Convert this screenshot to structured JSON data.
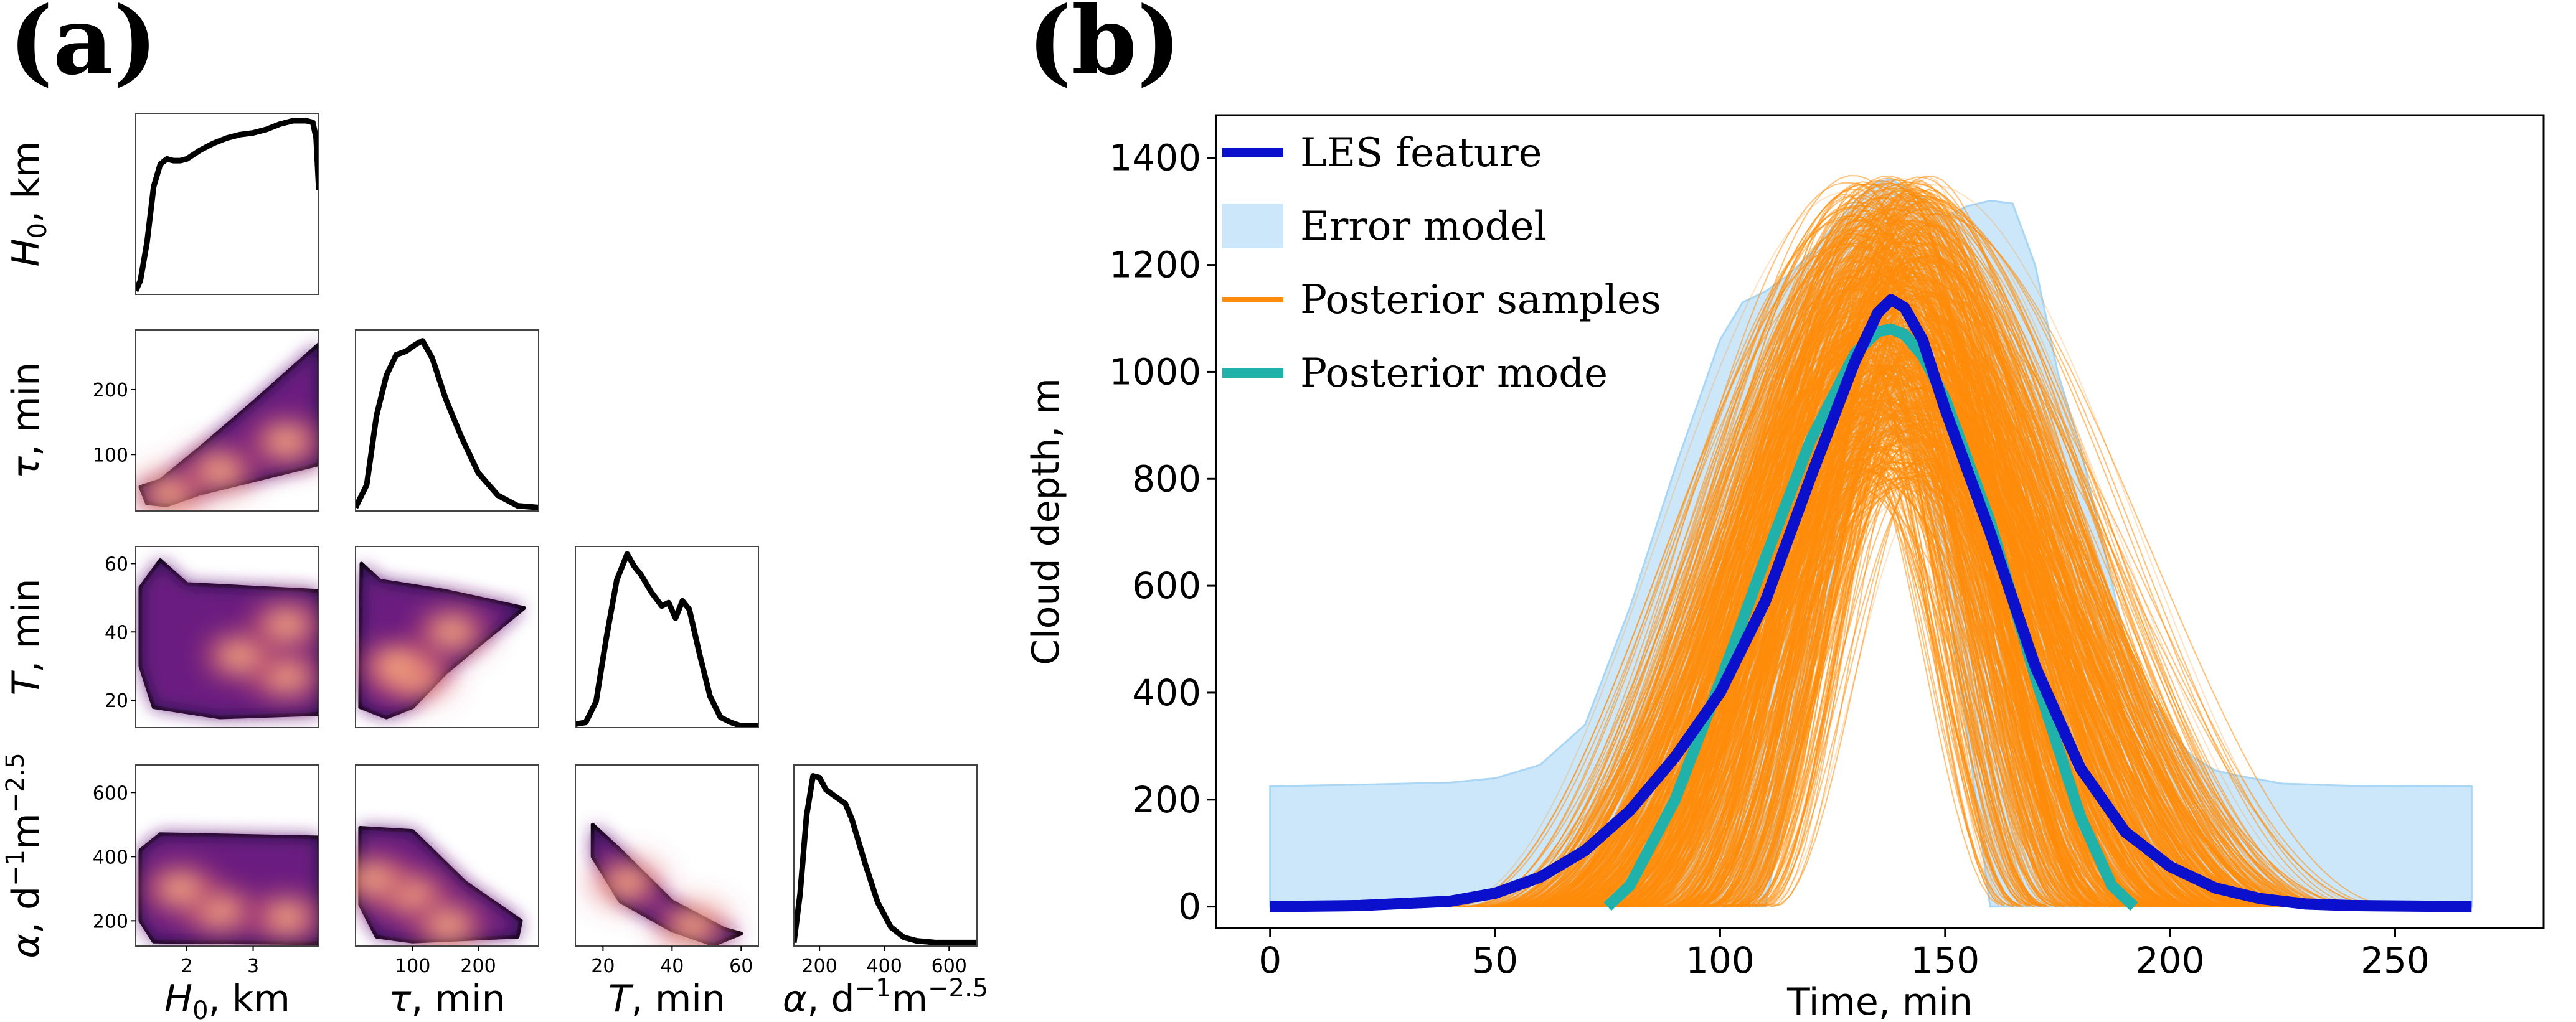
{
  "panel_labels": {
    "a": "(a)",
    "b": "(b)"
  },
  "chart_data": [
    {
      "type": "corner",
      "panel": "(a)",
      "colormap": "magma",
      "parameters": [
        {
          "label_html": "H0, km",
          "sym": "H",
          "sub": "0",
          "unit": ", km",
          "range": [
            1.23,
            3.99
          ],
          "ticks": [
            2,
            3
          ]
        },
        {
          "label_html": "τ, min",
          "sym": "τ",
          "unit": ", min",
          "range": [
            13,
            292
          ],
          "ticks": [
            100,
            200
          ]
        },
        {
          "label_html": "T, min",
          "sym": "T",
          "unit": ", min",
          "range": [
            12,
            65
          ],
          "ticks": [
            20,
            40,
            60
          ]
        },
        {
          "label_html": "α, d-1m-2.5",
          "sym": "α",
          "unit": ", d",
          "sup1": "−1",
          "unit2": "m",
          "sup2": "−2.5",
          "range": [
            121,
            686
          ],
          "ticks": [
            200,
            400,
            600
          ]
        }
      ],
      "marginals": [
        {
          "x": [
            1.23,
            1.3,
            1.4,
            1.5,
            1.6,
            1.7,
            1.8,
            1.9,
            2.0,
            2.2,
            2.4,
            2.6,
            2.8,
            3.0,
            3.2,
            3.4,
            3.6,
            3.8,
            3.9,
            3.95,
            3.99
          ],
          "density": [
            0.02,
            0.08,
            0.3,
            0.62,
            0.75,
            0.78,
            0.77,
            0.77,
            0.78,
            0.83,
            0.87,
            0.9,
            0.92,
            0.93,
            0.95,
            0.98,
            1.0,
            1.0,
            0.99,
            0.9,
            0.6
          ]
        },
        {
          "x": [
            13,
            30,
            45,
            60,
            75,
            90,
            105,
            115,
            130,
            150,
            175,
            200,
            230,
            260,
            292
          ],
          "density": [
            0.02,
            0.15,
            0.55,
            0.78,
            0.9,
            0.92,
            0.96,
            0.98,
            0.88,
            0.65,
            0.42,
            0.22,
            0.09,
            0.03,
            0.02
          ]
        },
        {
          "x": [
            12,
            15,
            18,
            21,
            24,
            27,
            29,
            31,
            34,
            37,
            39,
            41,
            43,
            45,
            48,
            51,
            54,
            57,
            60,
            65
          ],
          "density": [
            0.02,
            0.03,
            0.15,
            0.52,
            0.85,
            1.0,
            0.93,
            0.88,
            0.78,
            0.7,
            0.72,
            0.63,
            0.73,
            0.68,
            0.42,
            0.18,
            0.06,
            0.03,
            0.01,
            0.01
          ]
        },
        {
          "x": [
            121,
            140,
            160,
            180,
            200,
            220,
            250,
            280,
            300,
            340,
            380,
            420,
            460,
            500,
            560,
            620,
            686
          ],
          "density": [
            0.02,
            0.3,
            0.75,
            0.98,
            0.97,
            0.9,
            0.86,
            0.82,
            0.73,
            0.48,
            0.25,
            0.11,
            0.05,
            0.03,
            0.02,
            0.02,
            0.02
          ]
        }
      ],
      "joints": [
        {
          "xi": 0,
          "yi": 1,
          "region": [
            [
              1.3,
              50
            ],
            [
              1.6,
              60
            ],
            [
              2.2,
              110
            ],
            [
              3.0,
              180
            ],
            [
              3.99,
              270
            ],
            [
              3.99,
              85
            ],
            [
              3.0,
              60
            ],
            [
              2.2,
              40
            ],
            [
              1.7,
              22
            ],
            [
              1.4,
              25
            ]
          ],
          "hot": [
            [
              1.75,
              40
            ],
            [
              2.5,
              75
            ],
            [
              3.5,
              120
            ]
          ]
        },
        {
          "xi": 0,
          "yi": 2,
          "region": [
            [
              1.3,
              53
            ],
            [
              1.6,
              61
            ],
            [
              2.0,
              54
            ],
            [
              3.99,
              52
            ],
            [
              3.99,
              16
            ],
            [
              2.5,
              15
            ],
            [
              1.5,
              18
            ],
            [
              1.3,
              30
            ]
          ],
          "hot": [
            [
              3.5,
              27
            ],
            [
              2.8,
              33
            ],
            [
              3.5,
              42
            ]
          ]
        },
        {
          "xi": 1,
          "yi": 2,
          "region": [
            [
              22,
              60
            ],
            [
              50,
              55
            ],
            [
              150,
              52
            ],
            [
              270,
              47
            ],
            [
              200,
              36
            ],
            [
              150,
              28
            ],
            [
              100,
              18
            ],
            [
              60,
              15
            ],
            [
              20,
              18
            ]
          ],
          "hot": [
            [
              105,
              27
            ],
            [
              75,
              30
            ],
            [
              160,
              40
            ]
          ]
        },
        {
          "xi": 0,
          "yi": 3,
          "region": [
            [
              1.3,
              420
            ],
            [
              1.6,
              470
            ],
            [
              3.99,
              460
            ],
            [
              3.99,
              130
            ],
            [
              1.5,
              135
            ],
            [
              1.3,
              200
            ]
          ],
          "hot": [
            [
              3.5,
              210
            ],
            [
              2.5,
              230
            ],
            [
              1.9,
              300
            ]
          ]
        },
        {
          "xi": 1,
          "yi": 3,
          "region": [
            [
              20,
              490
            ],
            [
              100,
              480
            ],
            [
              180,
              320
            ],
            [
              265,
              200
            ],
            [
              260,
              150
            ],
            [
              100,
              135
            ],
            [
              45,
              150
            ],
            [
              20,
              250
            ]
          ],
          "hot": [
            [
              100,
              280
            ],
            [
              155,
              185
            ],
            [
              40,
              330
            ]
          ]
        },
        {
          "xi": 2,
          "yi": 3,
          "region": [
            [
              17,
              500
            ],
            [
              25,
              420
            ],
            [
              40,
              260
            ],
            [
              55,
              175
            ],
            [
              60,
              160
            ],
            [
              52,
              125
            ],
            [
              40,
              170
            ],
            [
              25,
              260
            ],
            [
              17,
              400
            ]
          ],
          "hot": [
            [
              27,
              320
            ],
            [
              46,
              185
            ]
          ]
        }
      ]
    },
    {
      "type": "line",
      "panel": "(b)",
      "xlabel": "Time, min",
      "ylabel": "Cloud depth, m",
      "xlim": [
        -12,
        283
      ],
      "ylim": [
        -40,
        1480
      ],
      "xticks": [
        0,
        50,
        100,
        150,
        200,
        250
      ],
      "yticks": [
        0,
        200,
        400,
        600,
        800,
        1000,
        1200,
        1400
      ],
      "legend_placement": "top-left",
      "legend": [
        "LES feature",
        "Error model",
        "Posterior samples",
        "Posterior mode"
      ],
      "colors": {
        "les": "#0a10cc",
        "error": "#cce7f9",
        "error_edge": "#a9d6f5",
        "samples": "#ff8c0a",
        "mode": "#20b2aa"
      },
      "les_feature": {
        "x": [
          0,
          20,
          40,
          50,
          60,
          70,
          80,
          90,
          100,
          110,
          120,
          130,
          135,
          138,
          141,
          145,
          150,
          160,
          170,
          180,
          190,
          200,
          210,
          220,
          230,
          240,
          267
        ],
        "y": [
          0,
          2,
          10,
          25,
          55,
          105,
          180,
          280,
          400,
          570,
          800,
          1020,
          1110,
          1135,
          1120,
          1060,
          930,
          700,
          450,
          260,
          140,
          75,
          35,
          15,
          5,
          2,
          0
        ]
      },
      "posterior_mode": {
        "x": [
          75,
          80,
          90,
          100,
          110,
          120,
          130,
          135,
          138,
          141,
          145,
          150,
          160,
          170,
          180,
          187,
          192
        ],
        "y": [
          0,
          40,
          200,
          420,
          650,
          870,
          1035,
          1075,
          1080,
          1070,
          1030,
          950,
          720,
          430,
          170,
          40,
          0
        ]
      },
      "error_model": {
        "x": [
          0,
          20,
          40,
          50,
          60,
          70,
          80,
          90,
          100,
          105,
          110,
          115,
          120,
          125,
          130,
          135,
          138,
          142,
          146,
          150,
          155,
          160,
          165,
          170,
          175,
          180,
          185,
          190,
          195,
          200,
          205,
          210,
          215,
          225,
          240,
          267
        ],
        "upper": [
          225,
          228,
          232,
          240,
          265,
          340,
          560,
          820,
          1060,
          1130,
          1150,
          1180,
          1220,
          1270,
          1320,
          1355,
          1360,
          1340,
          1320,
          1290,
          1310,
          1320,
          1315,
          1200,
          1000,
          860,
          680,
          500,
          400,
          330,
          280,
          255,
          245,
          230,
          226,
          225
        ],
        "lower": [
          0,
          0,
          0,
          0,
          0,
          0,
          0,
          0,
          0,
          0,
          0,
          200,
          420,
          620,
          780,
          870,
          890,
          860,
          760,
          600,
          320,
          0,
          0,
          0,
          0,
          0,
          0,
          0,
          0,
          0,
          0,
          0,
          0,
          0,
          0,
          0
        ]
      },
      "posterior_samples": {
        "peak_time_range": [
          128,
          148
        ],
        "peak_depth_range": [
          780,
          1370
        ],
        "support_range": [
          35,
          235
        ]
      }
    }
  ]
}
